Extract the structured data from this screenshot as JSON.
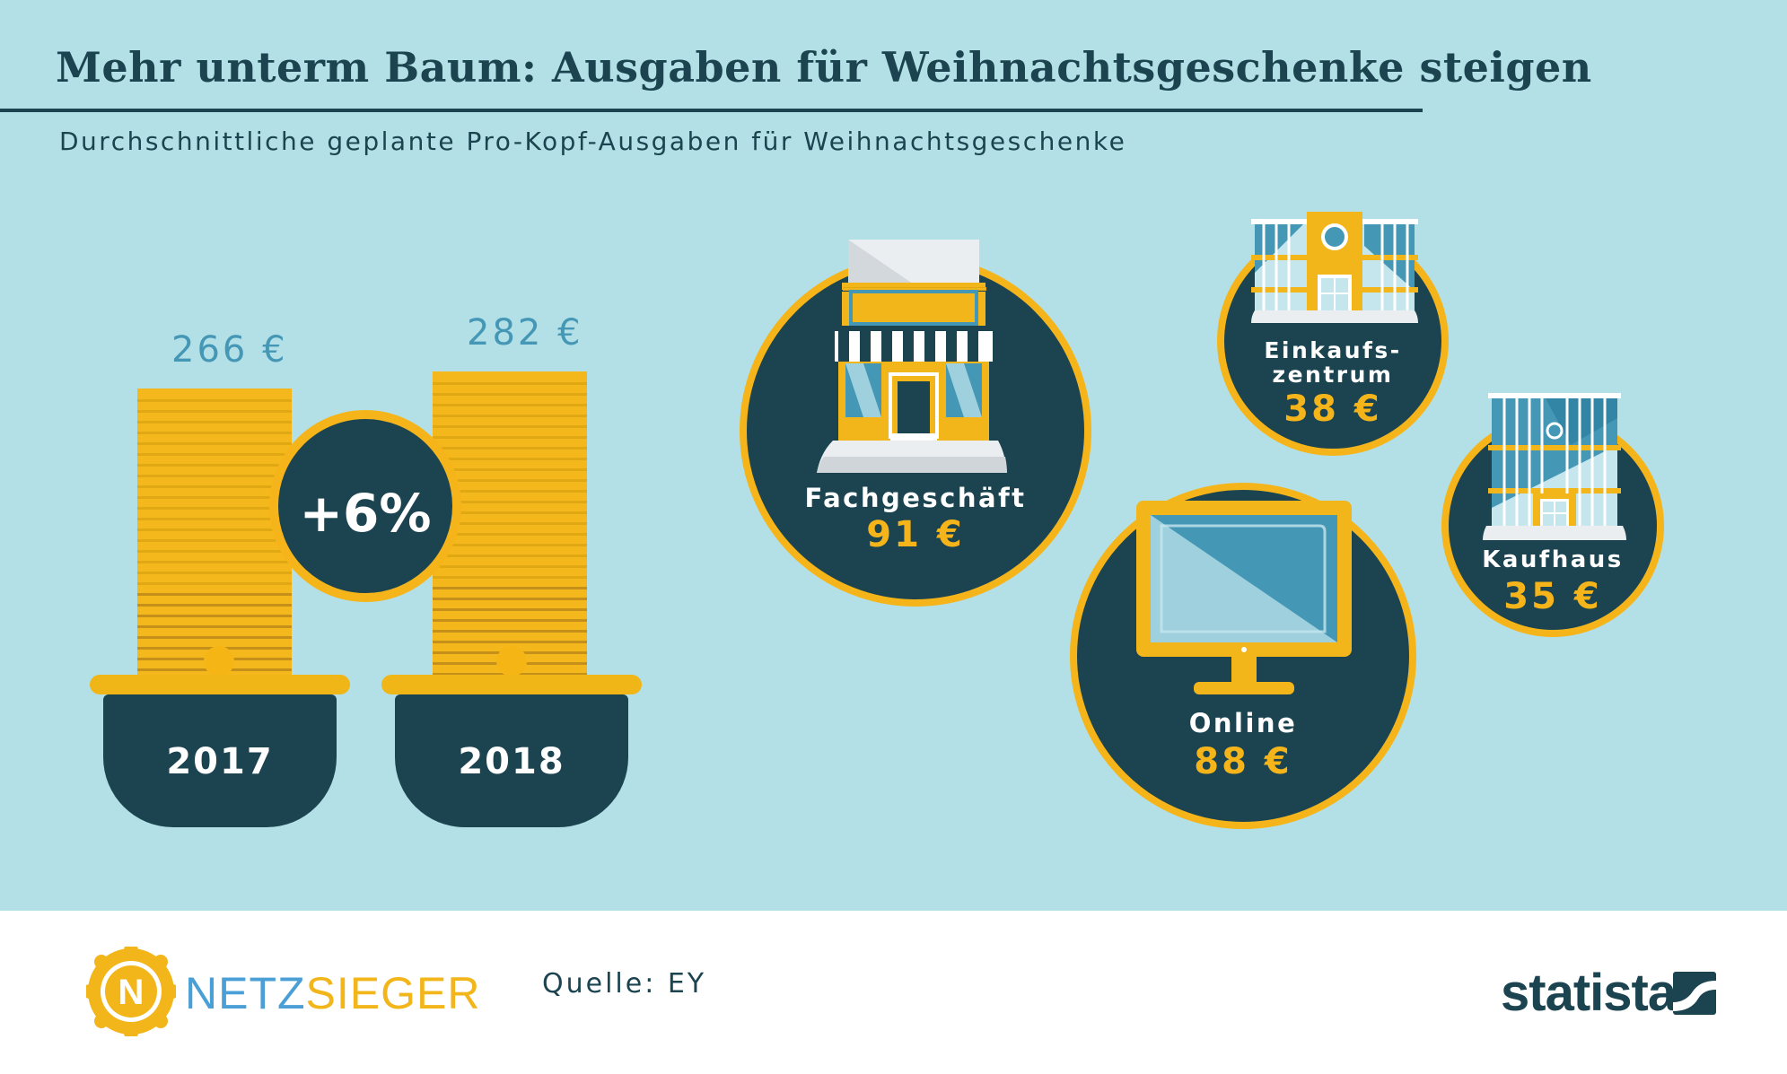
{
  "title": "Mehr unterm Baum: Ausgaben für Weihnachtsgeschenke steigen",
  "subtitle": "Durchschnittliche geplante Pro-Kopf-Ausgaben für Weihnachtsgeschenke",
  "colors": {
    "background": "#b3e0e6",
    "dark": "#1b4450",
    "gold": "#f5b51a",
    "value_blue": "#4597b6"
  },
  "chart_data": [
    {
      "type": "bar",
      "categories": [
        "2017",
        "2018"
      ],
      "values": [
        266,
        282
      ],
      "value_labels": [
        "266 €",
        "282 €"
      ],
      "unit": "€",
      "change_label": "+6%"
    },
    {
      "type": "bubble",
      "categories": [
        "Fachgeschäft",
        "Online",
        "Einkaufs- zentrum",
        "Kaufhaus"
      ],
      "values": [
        91,
        88,
        38,
        35
      ],
      "value_labels": [
        "91 €",
        "88 €",
        "38 €",
        "35 €"
      ],
      "unit": "€"
    }
  ],
  "channels": {
    "fachgeschaeft": {
      "label": "Fachgeschäft",
      "value": "91 €",
      "icon": "storefront-icon"
    },
    "online": {
      "label": "Online",
      "value": "88 €",
      "icon": "monitor-icon"
    },
    "einkaufszentrum": {
      "label_line1": "Einkaufs-",
      "label_line2": "zentrum",
      "value": "38 €",
      "icon": "mall-building-icon"
    },
    "kaufhaus": {
      "label": "Kaufhaus",
      "value": "35 €",
      "icon": "department-store-icon"
    }
  },
  "footer": {
    "brand_part1": "NETZ",
    "brand_part2": "SIEGER",
    "brand_mark": "N",
    "source": "Quelle: EY",
    "statista": "statista"
  }
}
